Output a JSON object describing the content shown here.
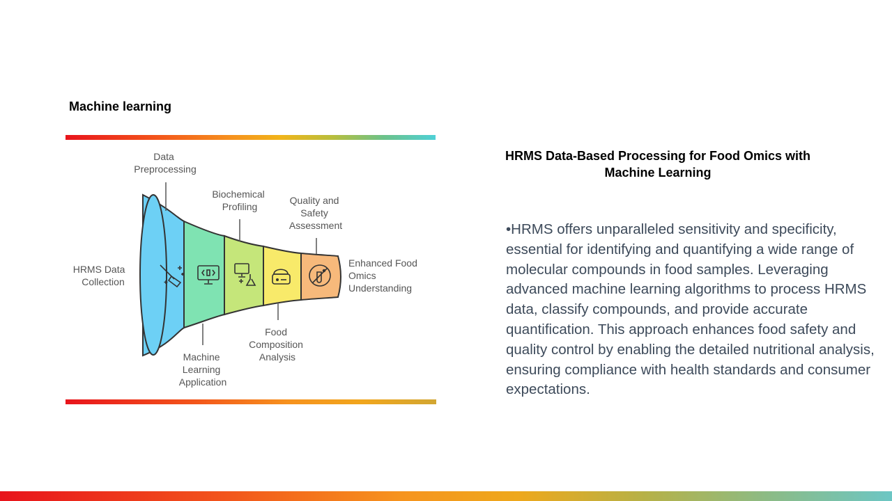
{
  "slide": {
    "heading": "Machine learning"
  },
  "diagram": {
    "stages": [
      {
        "label_lines": [
          "HRMS Data",
          "Collection"
        ],
        "color": "#6dd0f5",
        "icon": "broom-sparkle-icon"
      },
      {
        "label_lines": [
          "Data",
          "Preprocessing"
        ],
        "color": "#7fe3b2",
        "icon": "code-monitor-icon"
      },
      {
        "label_lines": [
          "Machine",
          "Learning",
          "Application"
        ],
        "color": "#c5e67a",
        "icon": "computer-lab-flask-icon"
      },
      {
        "label_lines": [
          "Biochemical",
          "Profiling"
        ],
        "color": "#f8ea6a",
        "icon": "food-scale-icon"
      },
      {
        "label_lines": [
          "Food",
          "Composition",
          "Analysis"
        ],
        "color": "#f7b97b",
        "icon": "no-test-tube-icon"
      },
      {
        "label_lines": [
          "Quality and",
          "Safety",
          "Assessment"
        ]
      },
      {
        "label_lines": [
          "Enhanced Food",
          "Omics",
          "Understanding"
        ]
      }
    ]
  },
  "right": {
    "title_line1": "HRMS Data-Based Processing for Food Omics with",
    "title_line2": "Machine Learning",
    "body": "•HRMS offers unparalleled sensitivity and specificity, essential for identifying and quantifying a wide range of molecular compounds in food samples. Leveraging advanced machine learning algorithms to process HRMS data, classify compounds, and provide accurate quantification. This approach enhances food safety and quality control by enabling the detailed nutritional analysis, ensuring compliance with health standards and consumer expectations."
  }
}
